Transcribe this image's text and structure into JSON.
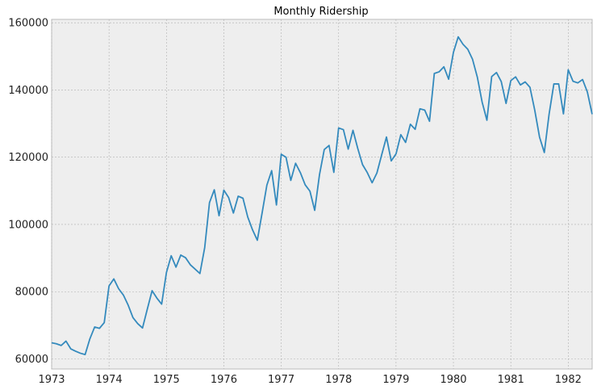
{
  "chart_data": {
    "type": "line",
    "title": "Monthly Ridership",
    "xlabel": "",
    "ylabel": "",
    "xlim": [
      1973.0,
      1982.417
    ],
    "ylim": [
      57000,
      161000
    ],
    "x_ticks": [
      1973,
      1974,
      1975,
      1976,
      1977,
      1978,
      1979,
      1980,
      1981,
      1982
    ],
    "x_tick_labels": [
      "1973",
      "1974",
      "1975",
      "1976",
      "1977",
      "1978",
      "1979",
      "1980",
      "1981",
      "1982"
    ],
    "y_ticks": [
      60000,
      80000,
      100000,
      120000,
      140000,
      160000
    ],
    "y_tick_labels": [
      "60000",
      "80000",
      "100000",
      "120000",
      "140000",
      "160000"
    ],
    "grid": true,
    "colors": {
      "line": "#348abd",
      "background": "#eeeeee",
      "grid": "#b0b0b0",
      "spine": "#bcbcbc"
    },
    "series": [
      {
        "x_start": "1973-01",
        "frequency": "monthly",
        "values": [
          64800,
          64500,
          64000,
          65300,
          63000,
          62300,
          61700,
          61300,
          66000,
          69500,
          69100,
          70800,
          81700,
          83800,
          80900,
          79000,
          76000,
          72300,
          70500,
          69200,
          74800,
          80300,
          78100,
          76300,
          85700,
          90700,
          87300,
          90900,
          90100,
          88000,
          86700,
          85400,
          93100,
          106500,
          110300,
          102600,
          110200,
          108000,
          103400,
          108400,
          107800,
          102200,
          98400,
          95300,
          103400,
          111700,
          116000,
          105800,
          120900,
          120000,
          113100,
          118200,
          115400,
          111800,
          109900,
          104200,
          114800,
          122300,
          123500,
          115500,
          128700,
          128200,
          122400,
          128000,
          122600,
          117800,
          115400,
          112400,
          115300,
          120700,
          126000,
          118900,
          121000,
          126700,
          124400,
          129800,
          128300,
          134400,
          134000,
          130700,
          144900,
          145400,
          146900,
          143200,
          151200,
          155800,
          153600,
          152100,
          149100,
          143800,
          136400,
          131000,
          144000,
          145200,
          142500,
          136000,
          142800,
          143900,
          141500,
          142400,
          140800,
          134000,
          126000,
          121400,
          132800,
          141800,
          141800,
          132900,
          146000,
          142600,
          142100,
          143100,
          139400,
          132800
        ]
      }
    ]
  }
}
